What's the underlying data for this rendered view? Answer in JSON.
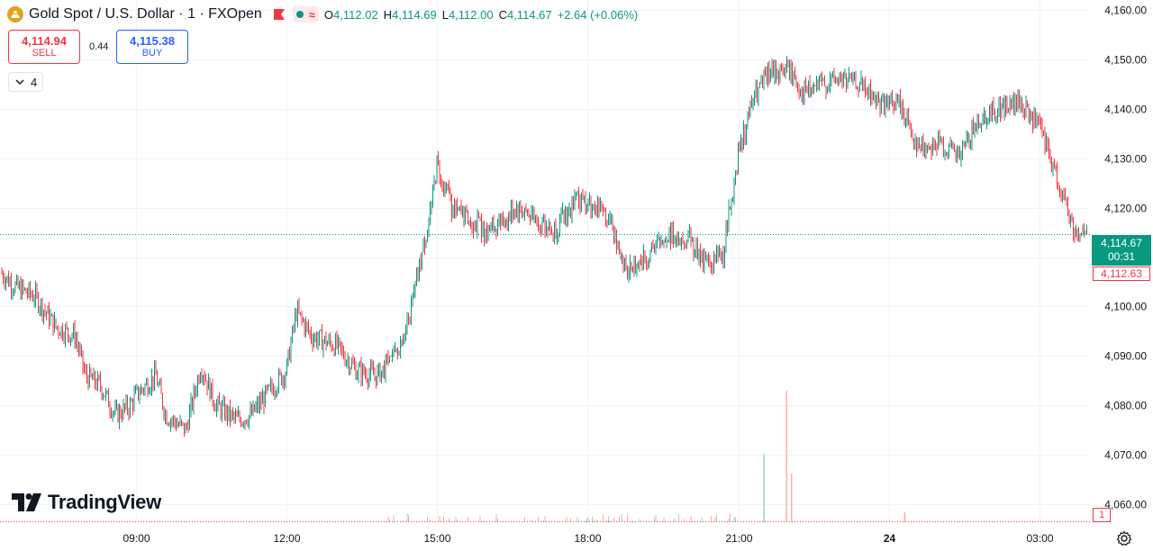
{
  "header": {
    "symbol_title": "Gold Spot / U.S. Dollar · 1 · FXOpen",
    "open_label": "O",
    "open_value": "4,112.02",
    "high_label": "H",
    "high_value": "4,114.69",
    "low_label": "L",
    "low_value": "4,112.00",
    "close_label": "C",
    "close_value": "4,114.67",
    "change": "+2.64 (+0.06%)",
    "approx_symbol": "≈",
    "icons": [
      "gold-coin-icon",
      "flag-icon",
      "market-open-dot-icon",
      "approx-icon"
    ]
  },
  "trade": {
    "sell_price": "4,114.94",
    "sell_label": "SELL",
    "spread": "0.44",
    "buy_price": "4,115.38",
    "buy_label": "BUY"
  },
  "indicators_toggle": {
    "count": "4",
    "icon": "chevron-down-icon"
  },
  "branding": {
    "name": "TradingView",
    "icon": "tradingview-logo-icon"
  },
  "price_tag": {
    "price": "4,114.67",
    "countdown": "00:31",
    "bid": "4,112.63",
    "volume": "1"
  },
  "settings_icon": "gear-icon",
  "colors": {
    "up": "#089981",
    "down": "#f23645",
    "accent": "#2962ff",
    "grid": "#f0f3fa"
  },
  "chart_data": {
    "type": "candlestick",
    "timeframe": "1 minute",
    "ylim": [
      4056,
      4162
    ],
    "y_ticks": [
      "4,160.00",
      "4,150.00",
      "4,140.00",
      "4,130.00",
      "4,120.00",
      "4,110.00",
      "4,100.00",
      "4,090.00",
      "4,080.00",
      "4,070.00",
      "4,060.00"
    ],
    "y_tick_values": [
      4160,
      4150,
      4140,
      4130,
      4120,
      4110,
      4100,
      4090,
      4080,
      4070,
      4060
    ],
    "x_ticks": [
      "09:00",
      "12:00",
      "15:00",
      "18:00",
      "21:00",
      "24",
      "03:00"
    ],
    "x_tick_hours": [
      9,
      12,
      15,
      18,
      21,
      24,
      27
    ],
    "x_range_hours": [
      6.3,
      28.0
    ],
    "last_price": 4114.67,
    "price_path": [
      [
        6.3,
        4107
      ],
      [
        6.6,
        4104
      ],
      [
        7.0,
        4102
      ],
      [
        7.4,
        4096
      ],
      [
        7.8,
        4094
      ],
      [
        8.0,
        4086
      ],
      [
        8.3,
        4084
      ],
      [
        8.6,
        4078
      ],
      [
        8.9,
        4080
      ],
      [
        9.0,
        4082
      ],
      [
        9.4,
        4086
      ],
      [
        9.6,
        4078
      ],
      [
        10.0,
        4075
      ],
      [
        10.3,
        4088
      ],
      [
        10.6,
        4080
      ],
      [
        11.0,
        4077
      ],
      [
        11.3,
        4078
      ],
      [
        11.6,
        4082
      ],
      [
        12.0,
        4087
      ],
      [
        12.2,
        4099
      ],
      [
        12.5,
        4094
      ],
      [
        13.0,
        4092
      ],
      [
        13.4,
        4087
      ],
      [
        13.8,
        4086
      ],
      [
        14.2,
        4090
      ],
      [
        14.5,
        4100
      ],
      [
        14.9,
        4121
      ],
      [
        15.0,
        4129
      ],
      [
        15.3,
        4120
      ],
      [
        15.6,
        4118
      ],
      [
        16.0,
        4115
      ],
      [
        16.3,
        4117
      ],
      [
        16.6,
        4120
      ],
      [
        17.0,
        4118
      ],
      [
        17.3,
        4115
      ],
      [
        17.8,
        4122
      ],
      [
        18.2,
        4120
      ],
      [
        18.5,
        4116
      ],
      [
        18.8,
        4107
      ],
      [
        19.2,
        4110
      ],
      [
        19.6,
        4115
      ],
      [
        20.0,
        4114
      ],
      [
        20.4,
        4108
      ],
      [
        20.7,
        4111
      ],
      [
        21.0,
        4131
      ],
      [
        21.3,
        4142
      ],
      [
        21.6,
        4147
      ],
      [
        22.0,
        4148
      ],
      [
        22.3,
        4143
      ],
      [
        22.7,
        4145
      ],
      [
        23.0,
        4146
      ],
      [
        23.4,
        4145
      ],
      [
        23.8,
        4141
      ],
      [
        24.2,
        4141
      ],
      [
        24.6,
        4132
      ],
      [
        25.0,
        4133
      ],
      [
        25.4,
        4130
      ],
      [
        25.8,
        4138
      ],
      [
        26.2,
        4140
      ],
      [
        26.6,
        4141
      ],
      [
        27.0,
        4136
      ],
      [
        27.2,
        4130
      ],
      [
        27.5,
        4121
      ],
      [
        27.7,
        4115
      ],
      [
        28.0,
        4114.67
      ]
    ],
    "volume_spikes": [
      {
        "hour": 21.5,
        "volume": 14,
        "direction": "up"
      },
      {
        "hour": 21.95,
        "volume": 27,
        "direction": "down"
      },
      {
        "hour": 22.05,
        "volume": 10,
        "direction": "down"
      },
      {
        "hour": 24.3,
        "volume": 2,
        "direction": "down"
      }
    ]
  }
}
